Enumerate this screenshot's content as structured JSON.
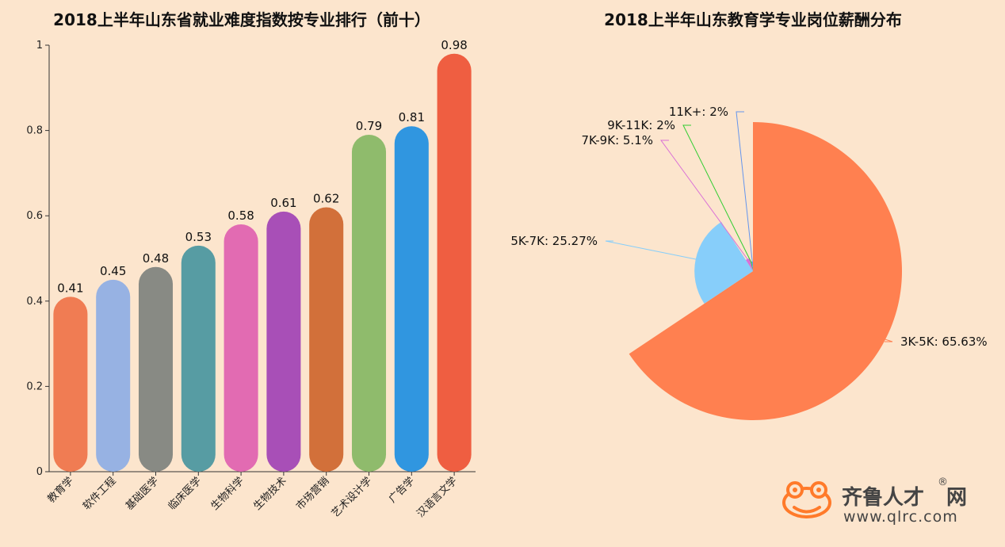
{
  "chart_data": [
    {
      "type": "bar",
      "title": "2018上半年山东省就业难度指数按专业排行（前十）",
      "categories": [
        "教育学",
        "软件工程",
        "基础医学",
        "临床医学",
        "生物科学",
        "生物技术",
        "市场营销",
        "艺术设计学",
        "广告学",
        "汉语言文学"
      ],
      "values": [
        0.41,
        0.45,
        0.48,
        0.53,
        0.58,
        0.61,
        0.62,
        0.79,
        0.81,
        0.98
      ],
      "value_labels": [
        "0.41",
        "0.45",
        "0.48",
        "0.53",
        "0.58",
        "0.61",
        "0.62",
        "0.79",
        "0.81",
        "0.98"
      ],
      "colors": [
        "#f07c53",
        "#97b2e3",
        "#888a84",
        "#579ca3",
        "#e26bb2",
        "#a84fb7",
        "#d2703a",
        "#8fbb6c",
        "#3096e0",
        "#ef5e41"
      ],
      "ylim": [
        0,
        1
      ],
      "yticks": [
        0,
        0.2,
        0.4,
        0.6,
        0.8,
        1
      ],
      "ytick_labels": [
        "0",
        "0.2",
        "0.4",
        "0.6",
        "0.8",
        "1"
      ],
      "xlabel": "",
      "ylabel": "",
      "grid": false
    },
    {
      "type": "pie",
      "title": "2018上半年山东教育学专业岗位薪酬分布",
      "slices": [
        {
          "label": "3K-5K: 65.63%",
          "value": 65.63,
          "color": "#ff8050"
        },
        {
          "label": "5K-7K: 25.27%",
          "value": 25.27,
          "color": "#87cefa"
        },
        {
          "label": "7K-9K: 5.1%",
          "value": 5.1,
          "color": "#da70d6"
        },
        {
          "label": "9K-11K: 2%",
          "value": 2,
          "color": "#32cd32"
        },
        {
          "label": "11K+: 2%",
          "value": 2,
          "color": "#6495ed"
        }
      ],
      "rose_type": "radius"
    }
  ],
  "logo": {
    "brand": "齐鲁人才",
    "wang": "网",
    "registered": "®",
    "url": "www.qlrc.com"
  }
}
